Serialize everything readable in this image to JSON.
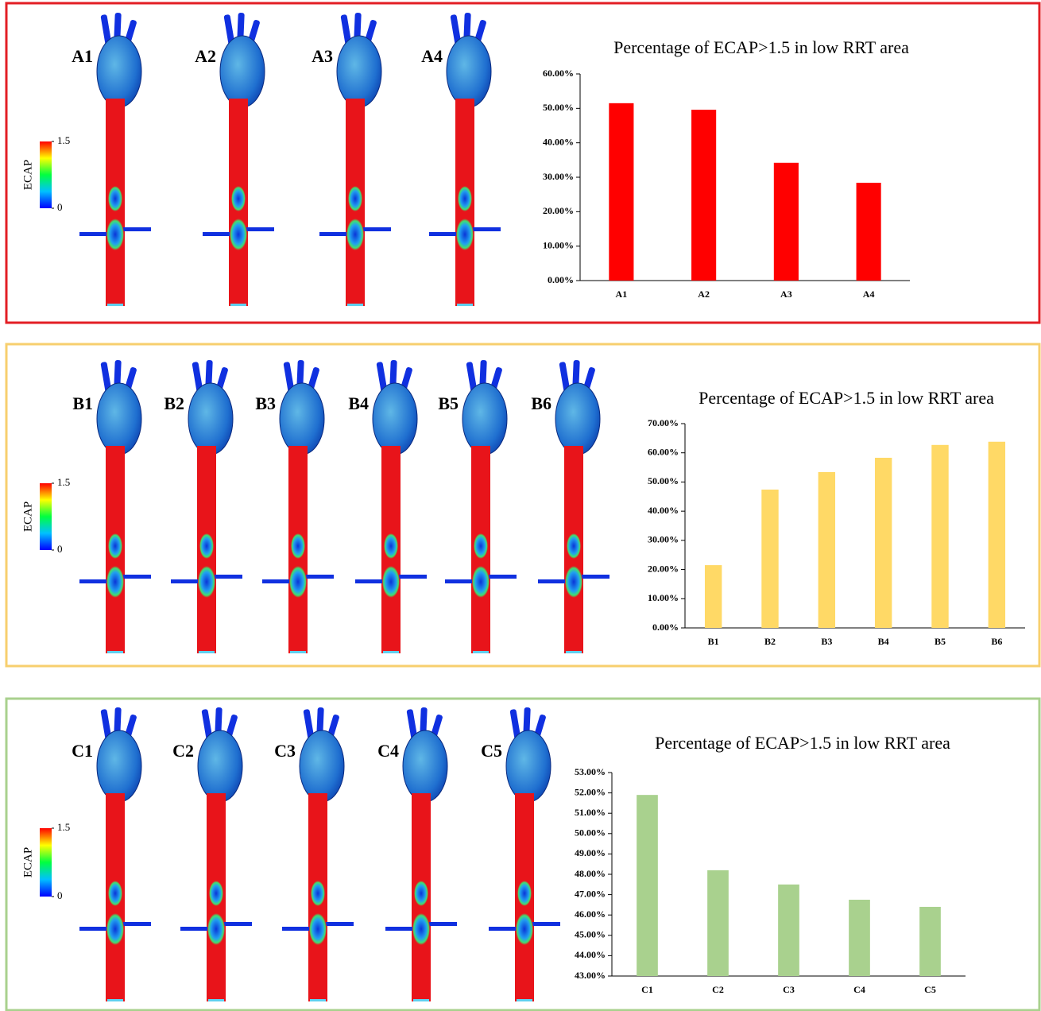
{
  "chart_data": [
    {
      "type": "bar",
      "title": "Percentage of ECAP>1.5 in low RRT area",
      "color": "#ff0000",
      "categories": [
        "A1",
        "A2",
        "A3",
        "A4"
      ],
      "values": [
        51.5,
        49.6,
        34.2,
        28.4
      ],
      "ylim": [
        0,
        60
      ],
      "yticks": [
        {
          "value": 0,
          "label": "0.00%"
        },
        {
          "value": 10,
          "label": "10.00%"
        },
        {
          "value": 20,
          "label": "20.00%"
        },
        {
          "value": 30,
          "label": "30.00%"
        },
        {
          "value": 40,
          "label": "40.00%"
        },
        {
          "value": 50,
          "label": "50.00%"
        },
        {
          "value": 60,
          "label": "60.00%"
        }
      ]
    },
    {
      "type": "bar",
      "title": "Percentage of ECAP>1.5 in low RRT area",
      "color": "#ffd966",
      "categories": [
        "B1",
        "B2",
        "B3",
        "B4",
        "B5",
        "B6"
      ],
      "values": [
        21.5,
        47.4,
        53.4,
        58.3,
        62.7,
        63.8
      ],
      "ylim": [
        0,
        70
      ],
      "yticks": [
        {
          "value": 0,
          "label": "0.00%"
        },
        {
          "value": 10,
          "label": "10.00%"
        },
        {
          "value": 20,
          "label": "20.00%"
        },
        {
          "value": 30,
          "label": "30.00%"
        },
        {
          "value": 40,
          "label": "40.00%"
        },
        {
          "value": 50,
          "label": "50.00%"
        },
        {
          "value": 60,
          "label": "60.00%"
        },
        {
          "value": 70,
          "label": "70.00%"
        }
      ]
    },
    {
      "type": "bar",
      "title": "Percentage of ECAP>1.5 in low RRT area",
      "color": "#a9d18e",
      "categories": [
        "C1",
        "C2",
        "C3",
        "C4",
        "C5"
      ],
      "values": [
        51.9,
        48.2,
        47.5,
        46.75,
        46.4
      ],
      "ylim": [
        43,
        53
      ],
      "yticks": [
        {
          "value": 43,
          "label": "43.00%"
        },
        {
          "value": 44,
          "label": "44.00%"
        },
        {
          "value": 45,
          "label": "45.00%"
        },
        {
          "value": 46,
          "label": "46.00%"
        },
        {
          "value": 47,
          "label": "47.00%"
        },
        {
          "value": 48,
          "label": "48.00%"
        },
        {
          "value": 49,
          "label": "49.00%"
        },
        {
          "value": 50,
          "label": "50.00%"
        },
        {
          "value": 51,
          "label": "51.00%"
        },
        {
          "value": 52,
          "label": "52.00%"
        },
        {
          "value": 53,
          "label": "53.00%"
        }
      ]
    }
  ],
  "panels": [
    {
      "models": [
        "A1",
        "A2",
        "A3",
        "A4"
      ],
      "colorbar": {
        "title": "ECAP",
        "ticks": [
          0,
          1.5
        ]
      }
    },
    {
      "models": [
        "B1",
        "B2",
        "B3",
        "B4",
        "B5",
        "B6"
      ],
      "colorbar": {
        "title": "ECAP",
        "ticks": [
          0,
          1.5
        ]
      }
    },
    {
      "models": [
        "C1",
        "C2",
        "C3",
        "C4",
        "C5"
      ],
      "colorbar": {
        "title": "ECAP",
        "ticks": [
          0,
          1.5
        ]
      }
    }
  ]
}
